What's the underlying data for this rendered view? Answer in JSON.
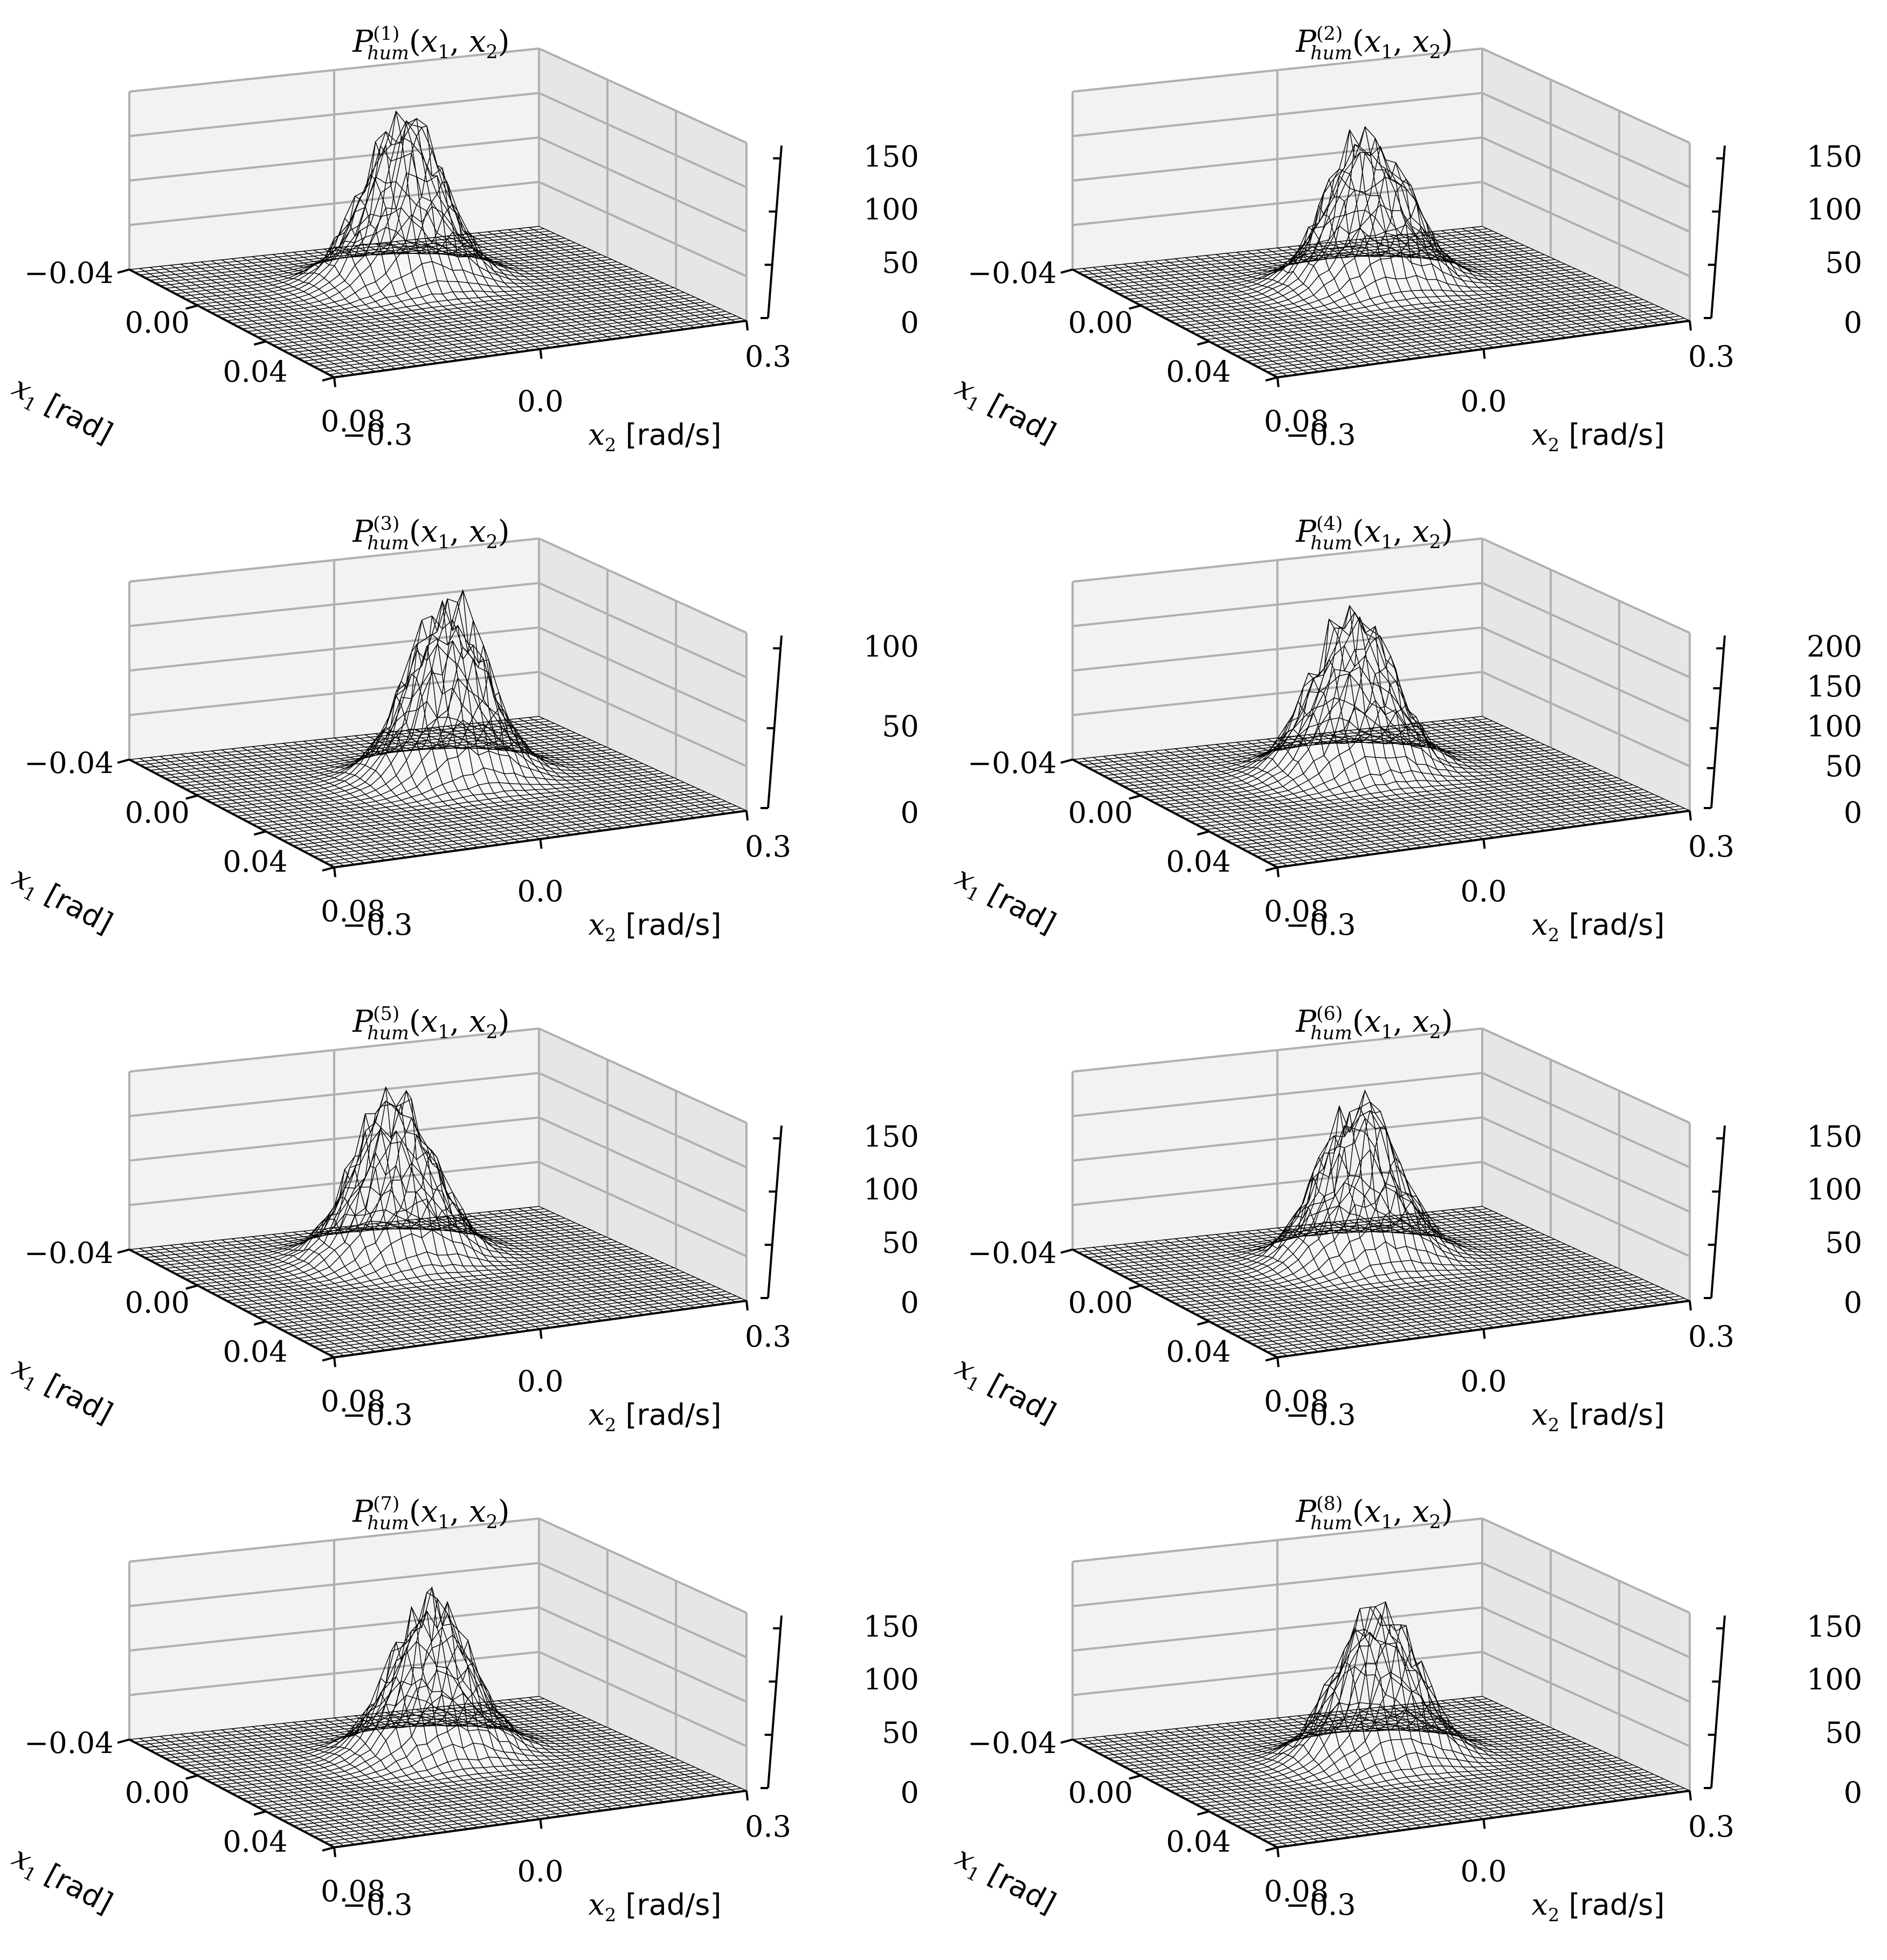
{
  "figure": {
    "description_type": "grid of 8 wireframe 3D surface plots"
  },
  "chart_data": [
    {
      "type": "surface",
      "index": "1",
      "title": "P_hum^(1)(x1, x2)",
      "x1_label": "x1 [rad]",
      "x2_label": "x2 [rad/s]",
      "x1_ticks": [
        "−0.04",
        "0.00",
        "0.04",
        "0.08"
      ],
      "x2_ticks": [
        "−0.3",
        "0.0",
        "0.3"
      ],
      "z_ticks": [
        "0",
        "50",
        "100",
        "150"
      ],
      "z_max": 150,
      "peak": 160,
      "center_x1": 0.0,
      "center_x2": 0.0,
      "seed": 1
    },
    {
      "type": "surface",
      "index": "2",
      "title": "P_hum^(2)(x1, x2)",
      "x1_label": "x1 [rad]",
      "x2_label": "x2 [rad/s]",
      "x1_ticks": [
        "−0.04",
        "0.00",
        "0.04",
        "0.08"
      ],
      "x2_ticks": [
        "−0.3",
        "0.0",
        "0.3"
      ],
      "z_ticks": [
        "0",
        "50",
        "100",
        "150"
      ],
      "z_max": 150,
      "peak": 150,
      "center_x1": 0.005,
      "center_x2": 0.02,
      "seed": 2
    },
    {
      "type": "surface",
      "index": "3",
      "title": "P_hum^(3)(x1, x2)",
      "x1_label": "x1 [rad]",
      "x2_label": "x2 [rad/s]",
      "x1_ticks": [
        "−0.04",
        "0.00",
        "0.04",
        "0.08"
      ],
      "x2_ticks": [
        "−0.3",
        "0.0",
        "0.3"
      ],
      "z_ticks": [
        "0",
        "50",
        "100"
      ],
      "z_max": 100,
      "peak": 115,
      "center_x1": 0.01,
      "center_x2": 0.04,
      "seed": 3
    },
    {
      "type": "surface",
      "index": "4",
      "title": "P_hum^(4)(x1, x2)",
      "x1_label": "x1 [rad]",
      "x2_label": "x2 [rad/s]",
      "x1_ticks": [
        "−0.04",
        "0.00",
        "0.04",
        "0.08"
      ],
      "x2_ticks": [
        "−0.3",
        "0.0",
        "0.3"
      ],
      "z_ticks": [
        "0",
        "50",
        "100",
        "150",
        "200"
      ],
      "z_max": 200,
      "peak": 210,
      "center_x1": 0.0,
      "center_x2": 0.01,
      "seed": 4
    },
    {
      "type": "surface",
      "index": "5",
      "title": "P_hum^(5)(x1, x2)",
      "x1_label": "x1 [rad]",
      "x2_label": "x2 [rad/s]",
      "x1_ticks": [
        "−0.04",
        "0.00",
        "0.04",
        "0.08"
      ],
      "x2_ticks": [
        "−0.3",
        "0.0",
        "0.3"
      ],
      "z_ticks": [
        "0",
        "50",
        "100",
        "150"
      ],
      "z_max": 150,
      "peak": 165,
      "center_x1": -0.005,
      "center_x2": 0.0,
      "seed": 5
    },
    {
      "type": "surface",
      "index": "6",
      "title": "P_hum^(6)(x1, x2)",
      "x1_label": "x1 [rad]",
      "x2_label": "x2 [rad/s]",
      "x1_ticks": [
        "−0.04",
        "0.00",
        "0.04",
        "0.08"
      ],
      "x2_ticks": [
        "−0.3",
        "0.0",
        "0.3"
      ],
      "z_ticks": [
        "0",
        "50",
        "100",
        "150"
      ],
      "z_max": 150,
      "peak": 155,
      "center_x1": 0.0,
      "center_x2": 0.02,
      "seed": 6
    },
    {
      "type": "surface",
      "index": "7",
      "title": "P_hum^(7)(x1, x2)",
      "x1_label": "x1 [rad]",
      "x2_label": "x2 [rad/s]",
      "x1_ticks": [
        "−0.04",
        "0.00",
        "0.04",
        "0.08"
      ],
      "x2_ticks": [
        "−0.3",
        "0.0",
        "0.3"
      ],
      "z_ticks": [
        "0",
        "50",
        "100",
        "150"
      ],
      "z_max": 150,
      "peak": 150,
      "center_x1": 0.005,
      "center_x2": 0.03,
      "seed": 7
    },
    {
      "type": "surface",
      "index": "8",
      "title": "P_hum^(8)(x1, x2)",
      "x1_label": "x1 [rad]",
      "x2_label": "x2 [rad/s]",
      "x1_ticks": [
        "−0.04",
        "0.00",
        "0.04",
        "0.08"
      ],
      "x2_ticks": [
        "−0.3",
        "0.0",
        "0.3"
      ],
      "z_ticks": [
        "0",
        "50",
        "100",
        "150"
      ],
      "z_max": 150,
      "peak": 150,
      "center_x1": 0.01,
      "center_x2": 0.02,
      "seed": 8
    }
  ]
}
